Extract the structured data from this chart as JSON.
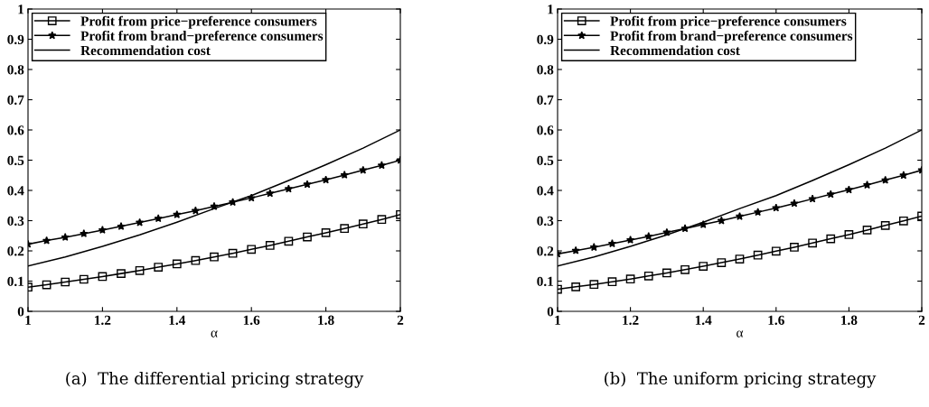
{
  "chart_data": [
    {
      "type": "line",
      "xlabel": "α",
      "xlim": [
        1,
        2
      ],
      "ylim": [
        0,
        1
      ],
      "xticks": [
        1,
        1.2,
        1.4,
        1.6,
        1.8,
        2
      ],
      "yticks": [
        0,
        0.1,
        0.2,
        0.3,
        0.4,
        0.5,
        0.6,
        0.7,
        0.8,
        0.9,
        1
      ],
      "grid": false,
      "legend": "top left",
      "annotations": [
        "(a)  The differential pricing strategy"
      ],
      "x": [
        1,
        1.05,
        1.1,
        1.15,
        1.2,
        1.25,
        1.3,
        1.35,
        1.4,
        1.45,
        1.5,
        1.55,
        1.6,
        1.65,
        1.7,
        1.75,
        1.8,
        1.85,
        1.9,
        1.95,
        2
      ],
      "series": [
        {
          "name": "Profit from price−preference consumers",
          "color": "#000000",
          "marker": "square",
          "values": [
            0.08,
            0.088,
            0.097,
            0.106,
            0.115,
            0.125,
            0.135,
            0.146,
            0.157,
            0.168,
            0.18,
            0.192,
            0.205,
            0.218,
            0.232,
            0.246,
            0.26,
            0.274,
            0.289,
            0.304,
            0.32
          ]
        },
        {
          "name": "Profit from brand−preference consumers",
          "color": "#000000",
          "marker": "star",
          "values": [
            0.222,
            0.234,
            0.245,
            0.257,
            0.269,
            0.281,
            0.294,
            0.307,
            0.32,
            0.333,
            0.347,
            0.361,
            0.375,
            0.39,
            0.405,
            0.42,
            0.435,
            0.451,
            0.467,
            0.483,
            0.5
          ]
        },
        {
          "name": "Recommendation cost",
          "color": "#000000",
          "marker": "none",
          "x": [
            1,
            1.1,
            1.2,
            1.3,
            1.4,
            1.5,
            1.6,
            1.7,
            1.8,
            1.9,
            2
          ],
          "values": [
            0.15,
            0.18,
            0.215,
            0.253,
            0.295,
            0.34,
            0.383,
            0.433,
            0.485,
            0.54,
            0.6
          ]
        }
      ]
    },
    {
      "type": "line",
      "xlabel": "α",
      "xlim": [
        1,
        2
      ],
      "ylim": [
        0,
        1
      ],
      "xticks": [
        1,
        1.2,
        1.4,
        1.6,
        1.8,
        2
      ],
      "yticks": [
        0,
        0.1,
        0.2,
        0.3,
        0.4,
        0.5,
        0.6,
        0.7,
        0.8,
        0.9,
        1
      ],
      "grid": false,
      "legend": "top left",
      "annotations": [
        "(b)  The uniform pricing strategy"
      ],
      "x": [
        1,
        1.05,
        1.1,
        1.15,
        1.2,
        1.25,
        1.3,
        1.35,
        1.4,
        1.45,
        1.5,
        1.55,
        1.6,
        1.65,
        1.7,
        1.75,
        1.8,
        1.85,
        1.9,
        1.95,
        2
      ],
      "series": [
        {
          "name": "Profit from price−preference consumers",
          "color": "#000000",
          "marker": "square",
          "values": [
            0.073,
            0.081,
            0.089,
            0.098,
            0.107,
            0.117,
            0.127,
            0.138,
            0.149,
            0.161,
            0.173,
            0.186,
            0.199,
            0.212,
            0.226,
            0.24,
            0.254,
            0.269,
            0.284,
            0.299,
            0.315
          ]
        },
        {
          "name": "Profit from brand−preference consumers",
          "color": "#000000",
          "marker": "star",
          "values": [
            0.19,
            0.201,
            0.212,
            0.224,
            0.236,
            0.248,
            0.261,
            0.274,
            0.287,
            0.3,
            0.314,
            0.328,
            0.342,
            0.357,
            0.372,
            0.387,
            0.402,
            0.418,
            0.434,
            0.45,
            0.467
          ]
        },
        {
          "name": "Recommendation cost",
          "color": "#000000",
          "marker": "none",
          "x": [
            1,
            1.1,
            1.2,
            1.3,
            1.4,
            1.5,
            1.6,
            1.7,
            1.8,
            1.9,
            2
          ],
          "values": [
            0.15,
            0.18,
            0.215,
            0.253,
            0.295,
            0.34,
            0.383,
            0.433,
            0.485,
            0.54,
            0.6
          ]
        }
      ]
    }
  ]
}
